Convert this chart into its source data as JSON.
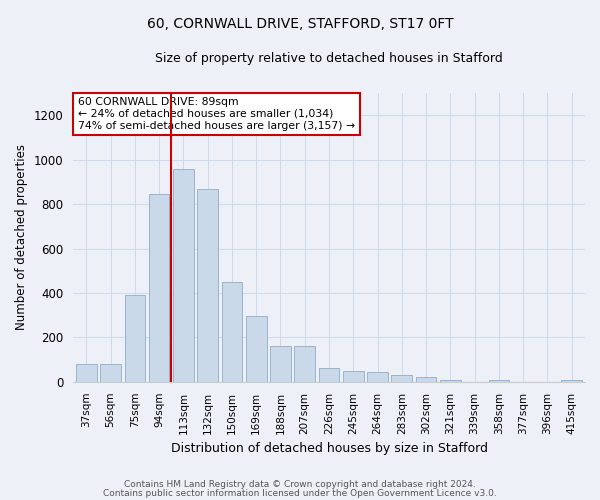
{
  "title1": "60, CORNWALL DRIVE, STAFFORD, ST17 0FT",
  "title2": "Size of property relative to detached houses in Stafford",
  "xlabel": "Distribution of detached houses by size in Stafford",
  "ylabel": "Number of detached properties",
  "categories": [
    "37sqm",
    "56sqm",
    "75sqm",
    "94sqm",
    "113sqm",
    "132sqm",
    "150sqm",
    "169sqm",
    "188sqm",
    "207sqm",
    "226sqm",
    "245sqm",
    "264sqm",
    "283sqm",
    "302sqm",
    "321sqm",
    "339sqm",
    "358sqm",
    "377sqm",
    "396sqm",
    "415sqm"
  ],
  "values": [
    80,
    80,
    390,
    845,
    960,
    870,
    450,
    295,
    160,
    160,
    60,
    50,
    45,
    30,
    20,
    10,
    0,
    10,
    0,
    0,
    10
  ],
  "bar_color": "#c9d9ea",
  "bar_edge_color": "#9ab4cc",
  "grid_color": "#d0daea",
  "bg_color": "#edf1f7",
  "vline_color": "#cc0000",
  "vline_x": 3.5,
  "annotation_text": "60 CORNWALL DRIVE: 89sqm\n← 24% of detached houses are smaller (1,034)\n74% of semi-detached houses are larger (3,157) →",
  "annotation_box_color": "white",
  "annotation_box_edge": "#cc0000",
  "ylim": [
    0,
    1300
  ],
  "yticks": [
    0,
    200,
    400,
    600,
    800,
    1000,
    1200
  ],
  "footer1": "Contains HM Land Registry data © Crown copyright and database right 2024.",
  "footer2": "Contains public sector information licensed under the Open Government Licence v3.0."
}
